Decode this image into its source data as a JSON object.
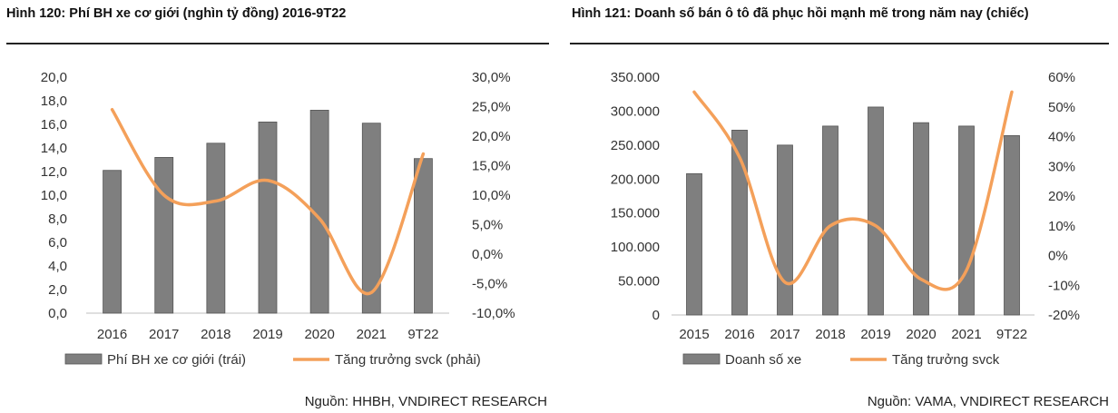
{
  "charts": [
    {
      "figure_title": "Hình 120: Phí BH xe cơ giới (nghìn tỷ đồng) 2016-9T22",
      "source": "Nguồn: HHBH, VNDIRECT RESEARCH"
    },
    {
      "figure_title": "Hình 121: Doanh số bán ô tô đã phục hồi mạnh mẽ trong năm nay (chiếc)",
      "source": "Nguồn: VAMA, VNDIRECT RESEARCH"
    }
  ],
  "chart_data": [
    {
      "type": "bar",
      "title": "Hình 120: Phí BH xe cơ giới (nghìn tỷ đồng) 2016-9T22",
      "categories": [
        "2016",
        "2017",
        "2018",
        "2019",
        "2020",
        "2021",
        "9T22"
      ],
      "series": [
        {
          "name": "Phí BH xe cơ giới (trái)",
          "type": "bar",
          "axis": "left",
          "color": "#7f7f7f",
          "values": [
            12.1,
            13.2,
            14.4,
            16.2,
            17.2,
            16.1,
            13.1
          ]
        },
        {
          "name": "Tăng trưởng svck (phải)",
          "type": "line",
          "axis": "right",
          "color": "#f4a05a",
          "values": [
            24.5,
            10.0,
            9.0,
            12.5,
            6.0,
            -6.5,
            17.0
          ]
        }
      ],
      "left_axis": {
        "min": 0,
        "max": 20,
        "step": 2,
        "tick_labels": [
          "0,0",
          "2,0",
          "4,0",
          "6,0",
          "8,0",
          "10,0",
          "12,0",
          "14,0",
          "16,0",
          "18,0",
          "20,0"
        ]
      },
      "right_axis": {
        "min": -10,
        "max": 30,
        "step": 5,
        "tick_labels": [
          "-10,0%",
          "-5,0%",
          "0,0%",
          "5,0%",
          "10,0%",
          "15,0%",
          "20,0%",
          "25,0%",
          "30,0%"
        ]
      },
      "legend_position": "bottom",
      "grid": false
    },
    {
      "type": "bar",
      "title": "Hình 121: Doanh số bán ô tô đã phục hồi mạnh mẽ trong năm nay (chiếc)",
      "categories": [
        "2015",
        "2016",
        "2017",
        "2018",
        "2019",
        "2020",
        "2021",
        "9T22"
      ],
      "series": [
        {
          "name": "Doanh số xe",
          "type": "bar",
          "axis": "left",
          "color": "#7f7f7f",
          "values": [
            208000,
            272000,
            250000,
            278000,
            306000,
            283000,
            278000,
            264000
          ]
        },
        {
          "name": "Tăng trưởng svck",
          "type": "line",
          "axis": "right",
          "color": "#f4a05a",
          "values": [
            55,
            33,
            -9,
            10,
            10,
            -8,
            -5,
            55
          ]
        }
      ],
      "left_axis": {
        "min": 0,
        "max": 350000,
        "step": 50000,
        "tick_labels": [
          "0",
          "50.000",
          "100.000",
          "150.000",
          "200.000",
          "250.000",
          "300.000",
          "350.000"
        ]
      },
      "right_axis": {
        "min": -20,
        "max": 60,
        "step": 10,
        "tick_labels": [
          "-20%",
          "-10%",
          "0%",
          "10%",
          "20%",
          "30%",
          "40%",
          "50%",
          "60%"
        ]
      },
      "legend_position": "bottom",
      "grid": false
    }
  ]
}
